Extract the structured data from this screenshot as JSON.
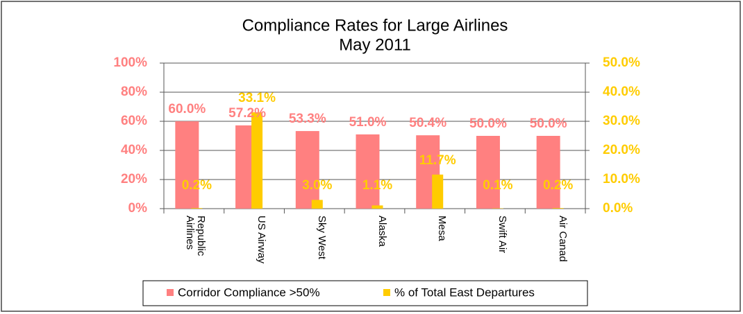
{
  "chart_data": {
    "type": "bar",
    "title": "Compliance Rates for Large Airlines",
    "subtitle": "May 2011",
    "categories": [
      "Republic Airlines",
      "US Airway",
      "Sky West",
      "Alaska",
      "Mesa",
      "Swift Air",
      "Air Canad"
    ],
    "series": [
      {
        "name": "Corridor Compliance >50%",
        "color": "#ff8080",
        "values": [
          60.0,
          57.2,
          53.3,
          51.0,
          50.4,
          50.0,
          50.0
        ],
        "value_labels": [
          "60.0%",
          "57.2%",
          "53.3%",
          "51.0%",
          "50.4%",
          "50.0%",
          "50.0%"
        ]
      },
      {
        "name": "% of Total East Departures",
        "color": "#ffcc00",
        "axis": "y2",
        "values": [
          0.2,
          33.1,
          3.0,
          1.1,
          11.7,
          0.1,
          0.2
        ],
        "value_labels": [
          "0.2%",
          "33.1%",
          "3.0%",
          "1.1%",
          "11.7%",
          "0.1%",
          "0.2%"
        ]
      }
    ],
    "ylim": [
      0,
      100
    ],
    "yticks": [
      {
        "value": 0,
        "label": "0%"
      },
      {
        "value": 20,
        "label": "20%"
      },
      {
        "value": 40,
        "label": "40%"
      },
      {
        "value": 60,
        "label": "60%"
      },
      {
        "value": 80,
        "label": "80%"
      },
      {
        "value": 100,
        "label": "100%"
      }
    ],
    "y2lim": [
      0,
      50
    ],
    "y2ticks": [
      {
        "value": 0,
        "label": "0.0%"
      },
      {
        "value": 10,
        "label": "10.0%"
      },
      {
        "value": 20,
        "label": "20.0%"
      },
      {
        "value": 30,
        "label": "30.0%"
      },
      {
        "value": 40,
        "label": "40.0%"
      },
      {
        "value": 50,
        "label": "50.0%"
      }
    ],
    "grid": true,
    "legend": "bottom"
  }
}
